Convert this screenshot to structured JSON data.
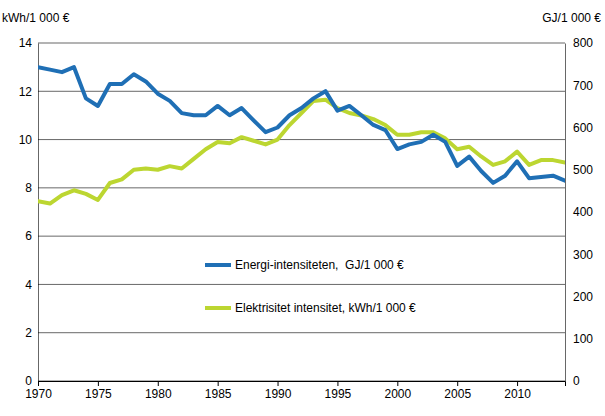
{
  "chart_data": {
    "type": "line",
    "y_label": "kWh/1 000 €",
    "y2_label": "GJ/1 000 €",
    "x": [
      1970,
      1971,
      1972,
      1973,
      1974,
      1975,
      1976,
      1977,
      1978,
      1979,
      1980,
      1981,
      1982,
      1983,
      1984,
      1985,
      1986,
      1987,
      1988,
      1989,
      1990,
      1991,
      1992,
      1993,
      1994,
      1995,
      1996,
      1997,
      1998,
      1999,
      2000,
      2001,
      2002,
      2003,
      2004,
      2005,
      2006,
      2007,
      2008,
      2009,
      2010,
      2011,
      2012,
      2013,
      2014
    ],
    "series": [
      {
        "name": "Energi-intensiteten,  GJ/1 000 €",
        "color": "#1f6fb5",
        "axis": "y2",
        "values": [
          743,
          737,
          731,
          743,
          669,
          651,
          703,
          703,
          726,
          709,
          680,
          663,
          634,
          629,
          629,
          651,
          629,
          646,
          617,
          589,
          600,
          629,
          646,
          669,
          686,
          640,
          651,
          629,
          606,
          594,
          549,
          560,
          566,
          583,
          566,
          509,
          531,
          497,
          469,
          486,
          520,
          480,
          483,
          486,
          474
        ]
      },
      {
        "name": "Elektrisitet intensitet, kWh/1 000 €",
        "color": "#bcd631",
        "values": [
          7.45,
          7.35,
          7.7,
          7.9,
          7.75,
          7.5,
          8.2,
          8.35,
          8.75,
          8.8,
          8.75,
          8.9,
          8.8,
          9.2,
          9.6,
          9.9,
          9.85,
          10.1,
          9.95,
          9.8,
          10.0,
          10.6,
          11.1,
          11.6,
          11.65,
          11.3,
          11.1,
          11.0,
          10.85,
          10.6,
          10.2,
          10.2,
          10.3,
          10.3,
          10.05,
          9.6,
          9.7,
          9.3,
          8.95,
          9.1,
          9.5,
          8.95,
          9.15,
          9.15,
          9.05
        ]
      }
    ],
    "xlim": [
      1970,
      2014
    ],
    "xticks": [
      1970,
      1975,
      1980,
      1985,
      1990,
      1995,
      2000,
      2005,
      2010
    ],
    "ylim": [
      0,
      14
    ],
    "yticks": [
      0,
      2,
      4,
      6,
      8,
      10,
      12,
      14
    ],
    "y2lim": [
      0,
      800
    ],
    "y2ticks": [
      0,
      100,
      200,
      300,
      400,
      500,
      600,
      700,
      800
    ],
    "grid": true,
    "legend": "center"
  }
}
